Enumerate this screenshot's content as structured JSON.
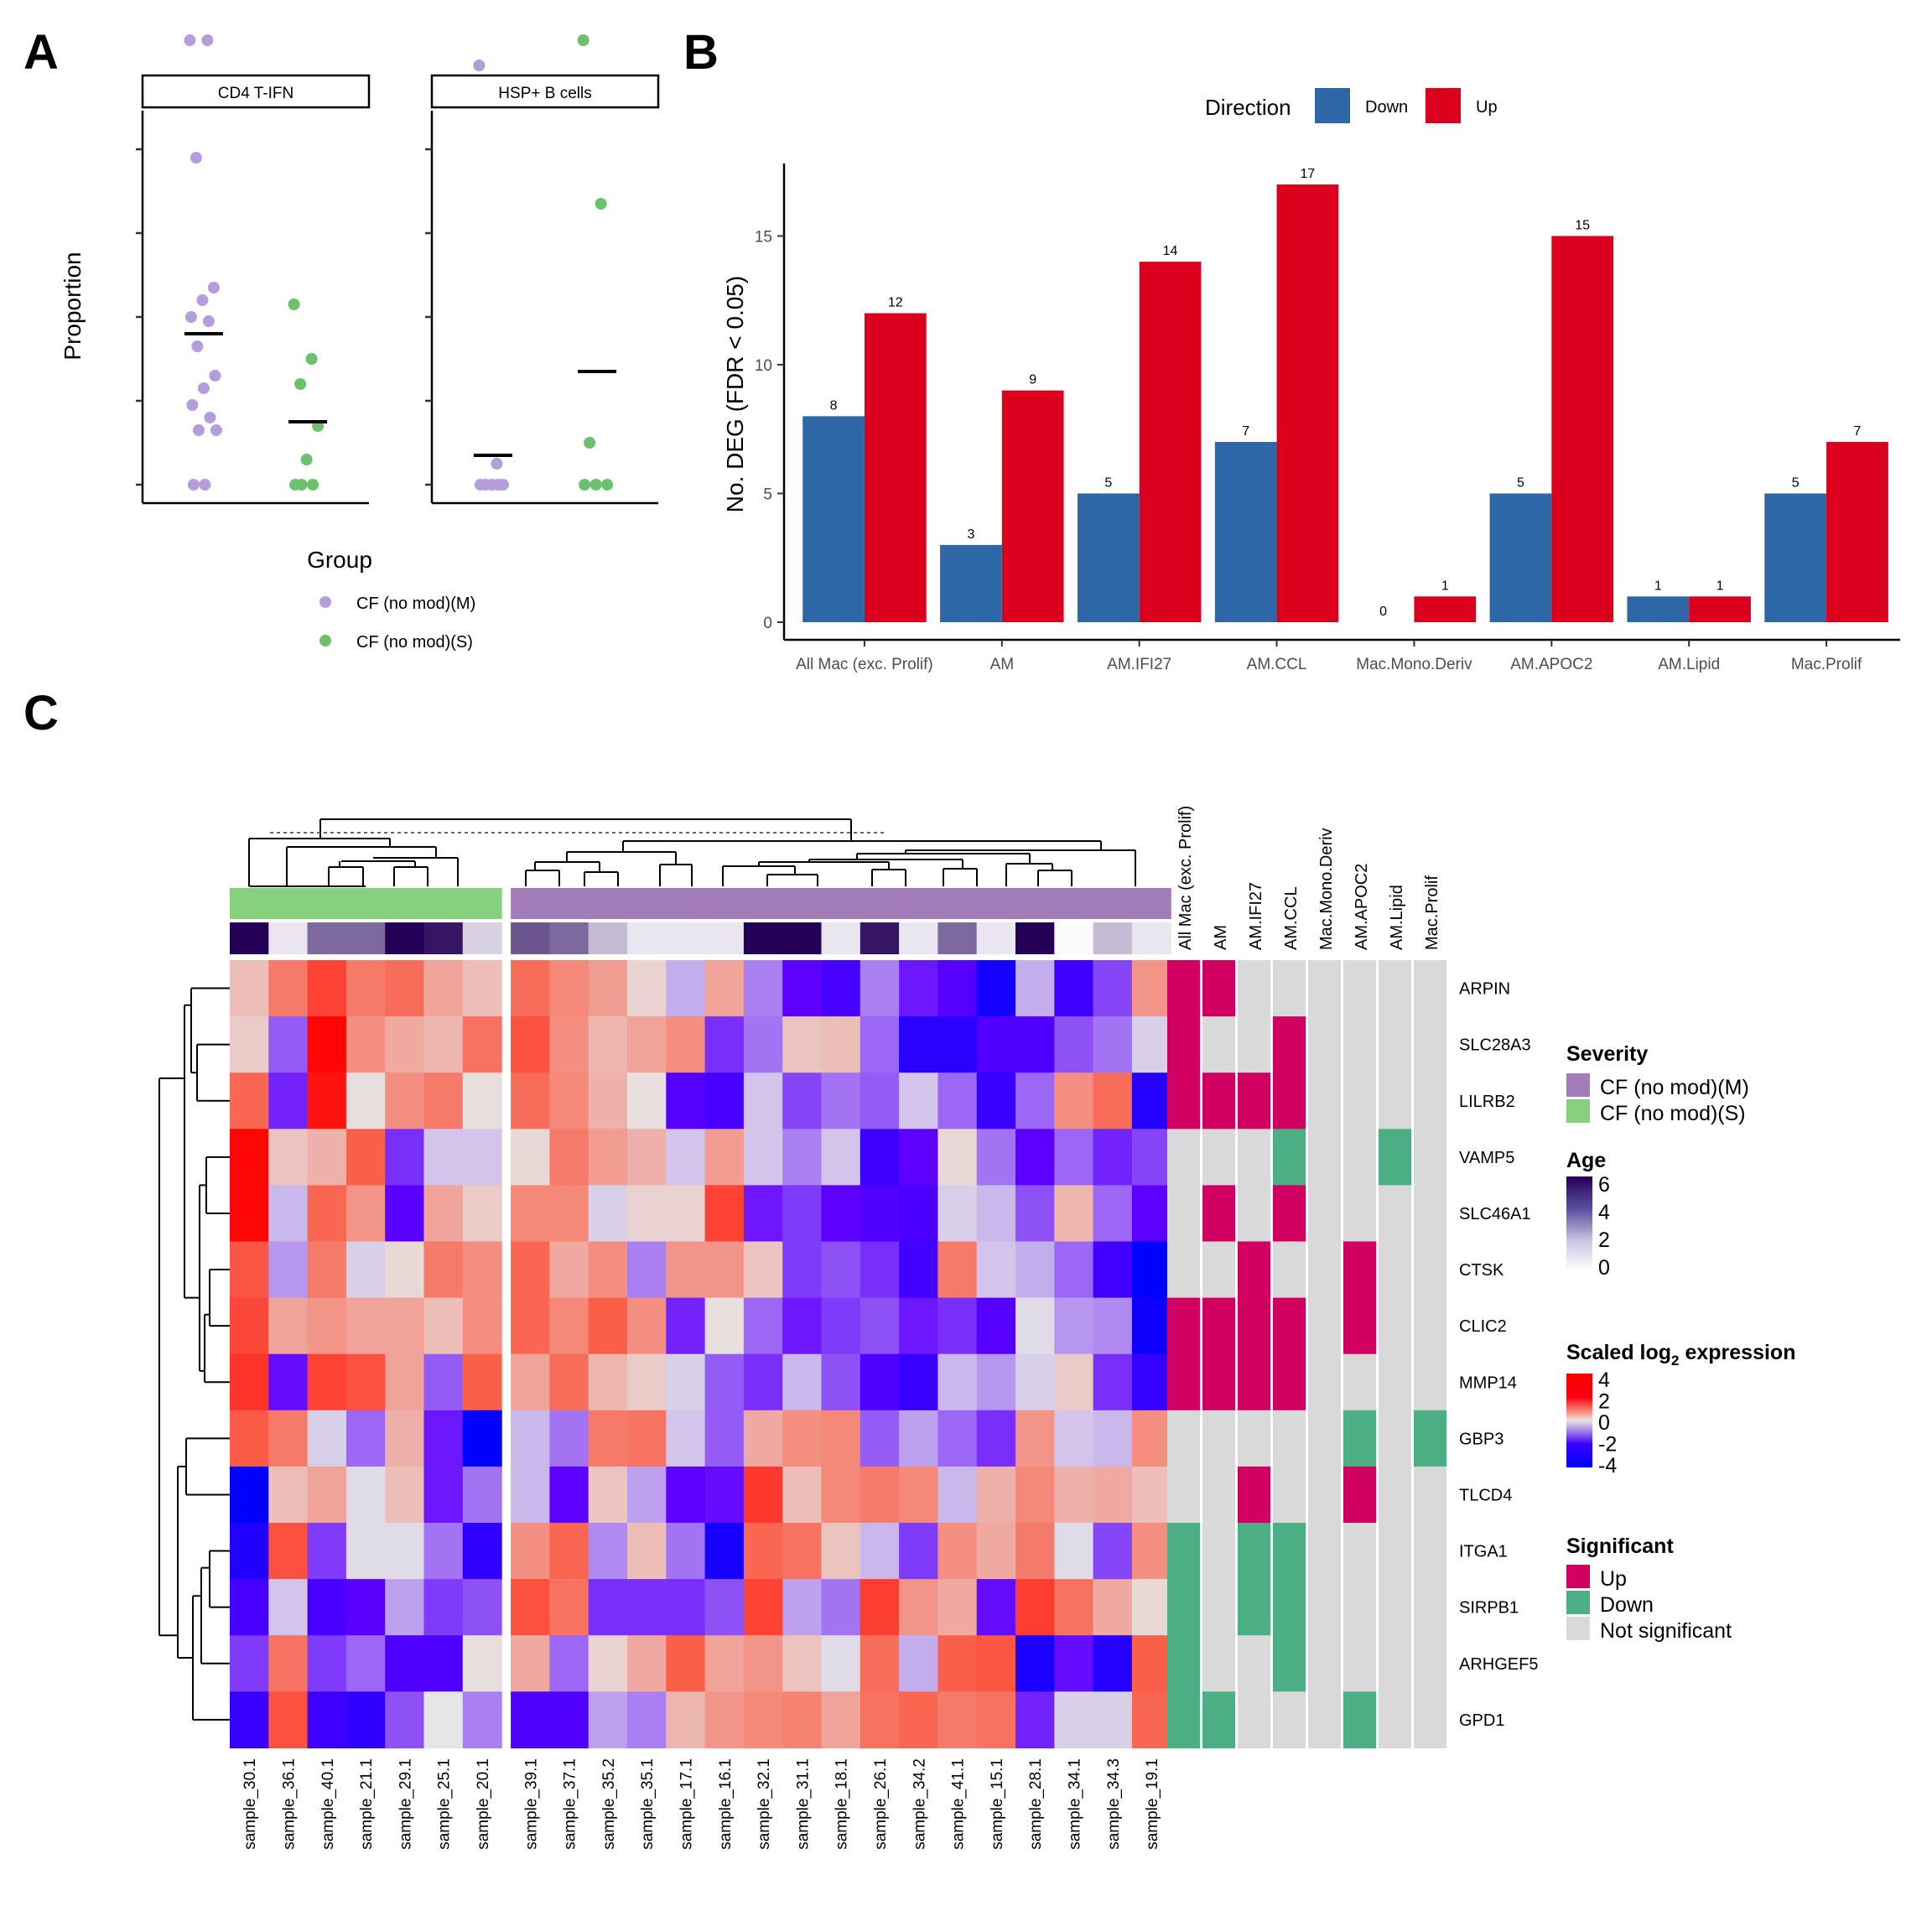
{
  "panels": {
    "a": "A",
    "b": "B",
    "c": "C"
  },
  "chart_data": [
    {
      "type": "scatter",
      "panel": "A",
      "facets": [
        "CD4 T-IFN",
        "HSP+ B cells"
      ],
      "ylabel": "Proportion",
      "xlabel": "",
      "y_ticks_labeled": false,
      "legend": {
        "title": "Group",
        "position": "bottom",
        "entries": [
          {
            "name": "CF (no mod)(M)",
            "color": "#b39ddb"
          },
          {
            "name": "CF (no mod)(S)",
            "color": "#6cc26c"
          }
        ]
      },
      "ylim": [
        -0.06,
        1.1
      ],
      "series": [
        {
          "facet": "CD4 T-IFN",
          "group": "CF (no mod)(M)",
          "y": [
            1.06,
            1.06,
            0.78,
            0.47,
            0.44,
            0.4,
            0.39,
            0.33,
            0.26,
            0.23,
            0.19,
            0.16,
            0.13,
            0.13,
            0.0,
            0.0
          ],
          "mean": 0.36
        },
        {
          "facet": "CD4 T-IFN",
          "group": "CF (no mod)(S)",
          "y": [
            0.43,
            0.3,
            0.24,
            0.14,
            0.06,
            0.0,
            0.0,
            0.0
          ],
          "mean": 0.15
        },
        {
          "facet": "HSP+ B cells",
          "group": "CF (no mod)(M)",
          "y": [
            1.0,
            0.05,
            0.0,
            0.0,
            0.0,
            0.0,
            0.0
          ],
          "mean": 0.07
        },
        {
          "facet": "HSP+ B cells",
          "group": "CF (no mod)(S)",
          "y": [
            1.06,
            0.67,
            0.1,
            0.0,
            0.0,
            0.0
          ],
          "mean": 0.27
        }
      ]
    },
    {
      "type": "bar",
      "panel": "B",
      "categories": [
        "All Mac (exc. Prolif)",
        "AM",
        "AM.IFI27",
        "AM.CCL",
        "Mac.Mono.Deriv",
        "AM.APOC2",
        "AM.Lipid",
        "Mac.Prolif"
      ],
      "series": [
        {
          "name": "Down",
          "color": "#2e67a8",
          "values": [
            8,
            3,
            5,
            7,
            0,
            5,
            1,
            5
          ]
        },
        {
          "name": "Up",
          "color": "#db001b",
          "values": [
            12,
            9,
            14,
            17,
            1,
            15,
            1,
            7
          ]
        }
      ],
      "title": "",
      "xlabel": "",
      "ylabel": "No. DEG (FDR < 0.05)",
      "ylim": [
        0,
        17.8
      ],
      "y_ticks": [
        0,
        5,
        10,
        15
      ],
      "legend": {
        "title": "Direction",
        "position": "top"
      },
      "grid": false
    },
    {
      "type": "heatmap",
      "panel": "C",
      "genes": [
        "ARPIN",
        "SLC28A3",
        "LILRB2",
        "VAMP5",
        "SLC46A1",
        "CTSK",
        "CLIC2",
        "MMP14",
        "GBP3",
        "TLCD4",
        "ITGA1",
        "SIRPB1",
        "ARHGEF5",
        "GPD1"
      ],
      "samples": [
        "sample_30.1",
        "sample_36.1",
        "sample_40.1",
        "sample_21.1",
        "sample_29.1",
        "sample_25.1",
        "sample_20.1",
        "sample_39.1",
        "sample_37.1",
        "sample_35.2",
        "sample_35.1",
        "sample_17.1",
        "sample_16.1",
        "sample_32.1",
        "sample_31.1",
        "sample_18.1",
        "sample_26.1",
        "sample_34.2",
        "sample_41.1",
        "sample_15.1",
        "sample_28.1",
        "sample_34.1",
        "sample_34.3",
        "sample_19.1"
      ],
      "severity": [
        "S",
        "S",
        "S",
        "S",
        "S",
        "S",
        "S",
        "M",
        "M",
        "M",
        "M",
        "M",
        "M",
        "M",
        "M",
        "M",
        "M",
        "M",
        "M",
        "M",
        "M",
        "M",
        "M",
        "M"
      ],
      "age": [
        6,
        0.5,
        3.5,
        3.5,
        6,
        5.5,
        1,
        4,
        3.5,
        1.5,
        0.5,
        0.5,
        0.5,
        6,
        6,
        0.5,
        5.5,
        0.5,
        3.5,
        0.5,
        6,
        0,
        1.5,
        0.5
      ],
      "values": [
        [
          0.6,
          1.6,
          2.6,
          1.6,
          1.8,
          1.0,
          0.6,
          1.8,
          1.4,
          1.1,
          0.3,
          -0.5,
          1.0,
          -0.9,
          -2.0,
          -2.5,
          -0.9,
          -1.8,
          -2.2,
          -3.6,
          -0.5,
          -2.7,
          -1.4,
          1.2
        ],
        [
          0.4,
          -1.2,
          3.9,
          1.3,
          0.9,
          0.7,
          1.7,
          2.3,
          1.3,
          0.7,
          1.0,
          1.3,
          -1.6,
          -1.0,
          0.5,
          0.6,
          -1.1,
          -3.1,
          -3.1,
          -2.3,
          -2.3,
          -1.3,
          -1.0,
          -0.2
        ],
        [
          1.9,
          -1.7,
          3.6,
          0.1,
          1.3,
          1.6,
          0.1,
          1.8,
          1.4,
          0.8,
          0.1,
          -2.2,
          -2.5,
          -0.3,
          -1.4,
          -1.0,
          -1.2,
          -0.3,
          -1.1,
          -2.8,
          -1.1,
          1.3,
          1.8,
          -3.2
        ],
        [
          3.9,
          0.5,
          0.8,
          2.0,
          -1.6,
          -0.3,
          -0.3,
          0.2,
          1.6,
          1.1,
          0.8,
          -0.3,
          1.1,
          -0.3,
          -0.9,
          -0.3,
          -2.7,
          -2.0,
          0.2,
          -1.0,
          -2.0,
          -1.1,
          -1.7,
          -1.4
        ],
        [
          3.9,
          -0.4,
          1.9,
          1.2,
          -2.1,
          1.0,
          0.4,
          1.4,
          1.4,
          -0.2,
          0.3,
          0.3,
          2.6,
          -1.8,
          -1.5,
          -2.0,
          -2.3,
          -2.4,
          -0.2,
          -0.4,
          -1.3,
          0.7,
          -1.1,
          -2.0
        ],
        [
          2.2,
          -0.7,
          1.6,
          -0.2,
          0.2,
          1.6,
          1.3,
          1.9,
          0.9,
          1.3,
          -0.9,
          1.2,
          1.2,
          0.5,
          -1.5,
          -1.3,
          -1.6,
          -2.6,
          1.6,
          -0.3,
          -0.5,
          -1.1,
          -2.6,
          -4.0
        ],
        [
          2.5,
          1.0,
          1.2,
          1.0,
          1.0,
          0.6,
          1.3,
          1.9,
          1.4,
          2.0,
          1.3,
          -1.7,
          0.1,
          -1.1,
          -1.8,
          -1.5,
          -1.3,
          -1.8,
          -1.6,
          -2.2,
          -0.1,
          -0.7,
          -0.8,
          -3.7
        ],
        [
          2.9,
          -1.9,
          2.6,
          2.3,
          1.0,
          -1.2,
          2.0,
          1.0,
          1.8,
          0.7,
          0.4,
          -0.2,
          -1.2,
          -1.6,
          -0.4,
          -1.3,
          -2.3,
          -2.8,
          -0.4,
          -0.7,
          -0.2,
          0.4,
          -1.6,
          -2.9
        ],
        [
          2.1,
          1.6,
          -0.2,
          -1.1,
          0.8,
          -1.8,
          -4.0,
          -0.4,
          -1.0,
          1.6,
          1.7,
          -0.3,
          -1.2,
          0.9,
          1.3,
          1.4,
          -1.2,
          -0.6,
          -1.1,
          -1.6,
          1.2,
          -0.3,
          -0.4,
          1.3
        ],
        [
          -4.0,
          0.6,
          1.0,
          -0.1,
          0.6,
          -1.8,
          -1.0,
          -0.4,
          -2.0,
          0.5,
          -0.6,
          -2.0,
          -1.9,
          2.8,
          0.6,
          1.4,
          1.6,
          1.4,
          -0.4,
          0.8,
          1.4,
          0.8,
          0.9,
          0.6
        ],
        [
          -3.3,
          2.3,
          -1.5,
          -0.1,
          -0.1,
          -1.0,
          -3.0,
          1.3,
          1.9,
          -0.8,
          0.6,
          -1.0,
          -3.5,
          1.9,
          1.7,
          0.5,
          -0.4,
          -1.5,
          1.3,
          0.9,
          1.6,
          -0.1,
          -1.4,
          1.3
        ],
        [
          -2.5,
          -0.3,
          -2.5,
          -2.1,
          -0.6,
          -1.5,
          -1.3,
          2.3,
          1.7,
          -1.6,
          -1.6,
          -1.6,
          -1.3,
          2.6,
          -0.6,
          -1.0,
          2.7,
          1.2,
          0.9,
          -1.9,
          2.7,
          1.7,
          0.9,
          0.2
        ],
        [
          -1.5,
          1.7,
          -1.5,
          -1.1,
          -2.3,
          -2.3,
          0.1,
          0.9,
          -1.1,
          0.3,
          0.9,
          2.0,
          1.0,
          1.2,
          0.5,
          -0.1,
          1.8,
          -0.5,
          2.0,
          2.2,
          -3.4,
          -1.9,
          -3.2,
          2.0
        ],
        [
          -2.8,
          2.3,
          -2.7,
          -3.0,
          -1.3,
          0.0,
          -0.9,
          -2.3,
          -2.3,
          -0.6,
          -0.9,
          0.7,
          1.2,
          1.4,
          1.5,
          1.0,
          1.7,
          1.9,
          1.6,
          1.7,
          -1.7,
          -0.2,
          -0.2,
          1.9
        ]
      ],
      "color_scale": {
        "title": "Scaled log2 expression",
        "min": -4,
        "max": 4,
        "ticks": [
          4,
          2,
          0,
          -2,
          -4
        ],
        "low": "#0000ff",
        "mid": "#e6e6e6",
        "high": "#ff0000"
      },
      "significance": {
        "columns": [
          "All Mac (exc. Prolif)",
          "AM",
          "AM.IFI27",
          "AM.CCL",
          "Mac.Mono.Deriv",
          "AM.APOC2",
          "AM.Lipid",
          "Mac.Prolif"
        ],
        "rows": [
          [
            "Up",
            "Up",
            "NS",
            "NS",
            "NS",
            "NS",
            "NS",
            "NS"
          ],
          [
            "Up",
            "NS",
            "NS",
            "Up",
            "NS",
            "NS",
            "NS",
            "NS"
          ],
          [
            "Up",
            "Up",
            "Up",
            "Up",
            "NS",
            "NS",
            "NS",
            "NS"
          ],
          [
            "NS",
            "NS",
            "NS",
            "Down",
            "NS",
            "NS",
            "Down",
            "NS"
          ],
          [
            "NS",
            "Up",
            "NS",
            "Up",
            "NS",
            "NS",
            "NS",
            "NS"
          ],
          [
            "NS",
            "NS",
            "Up",
            "NS",
            "NS",
            "Up",
            "NS",
            "NS"
          ],
          [
            "Up",
            "Up",
            "Up",
            "Up",
            "NS",
            "Up",
            "NS",
            "NS"
          ],
          [
            "Up",
            "Up",
            "Up",
            "Up",
            "NS",
            "NS",
            "NS",
            "NS"
          ],
          [
            "NS",
            "NS",
            "NS",
            "NS",
            "NS",
            "Down",
            "NS",
            "Down"
          ],
          [
            "NS",
            "NS",
            "Up",
            "NS",
            "NS",
            "Up",
            "NS",
            "NS"
          ],
          [
            "Down",
            "NS",
            "Down",
            "Down",
            "NS",
            "NS",
            "NS",
            "NS"
          ],
          [
            "Down",
            "NS",
            "Down",
            "Down",
            "NS",
            "NS",
            "NS",
            "NS"
          ],
          [
            "Down",
            "NS",
            "NS",
            "Down",
            "NS",
            "NS",
            "NS",
            "NS"
          ],
          [
            "Down",
            "Down",
            "NS",
            "NS",
            "NS",
            "Down",
            "NS",
            "NS"
          ]
        ]
      },
      "legends": {
        "severity": {
          "title": "Severity",
          "entries": [
            {
              "name": "CF (no mod)(M)",
              "color": "#a37db8"
            },
            {
              "name": "CF (no mod)(S)",
              "color": "#87d17e"
            }
          ]
        },
        "age": {
          "title": "Age",
          "ticks": [
            6,
            4,
            2,
            0
          ],
          "low": "#fbfbfd",
          "high": "#240056"
        },
        "expression": {
          "title_main": "Scaled log",
          "title_sub": "2",
          "title_tail": " expression"
        },
        "significant": {
          "title": "Significant",
          "entries": [
            {
              "name": "Up",
              "color": "#d10060"
            },
            {
              "name": "Down",
              "color": "#4caf84"
            },
            {
              "name": "Not significant",
              "color": "#d9d9d9"
            }
          ]
        }
      }
    }
  ]
}
